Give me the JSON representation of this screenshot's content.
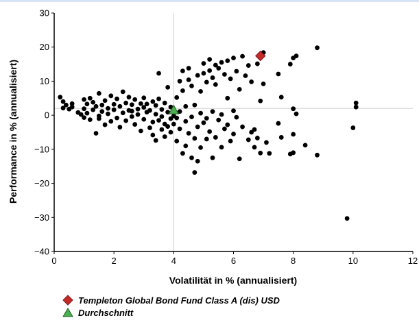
{
  "chart_data": {
    "type": "scatter",
    "xlabel": "Volatilität in % (annualisiert)",
    "ylabel": "Performance in % (annualisiert)",
    "xlim": [
      0,
      12
    ],
    "ylim": [
      -40,
      30
    ],
    "x_ticks": [
      "0",
      "2",
      "4",
      "6",
      "8",
      "10",
      "12"
    ],
    "y_ticks": [
      "30",
      "20",
      "10",
      "0",
      "−10",
      "−20",
      "−30",
      "−40"
    ],
    "grid": false,
    "crosshair": {
      "x": 4.0,
      "y": 2.0
    },
    "legend_position": "bottom",
    "series": [
      {
        "name": "",
        "marker": "circle",
        "color": "#000000",
        "points": [
          [
            0.2,
            5.3
          ],
          [
            0.3,
            4.0
          ],
          [
            0.3,
            2.1
          ],
          [
            0.4,
            3.0
          ],
          [
            0.5,
            1.8
          ],
          [
            0.6,
            3.4
          ],
          [
            0.6,
            2.4
          ],
          [
            0.8,
            0.8
          ],
          [
            0.9,
            0.2
          ],
          [
            1.0,
            4.6
          ],
          [
            1.0,
            1.9
          ],
          [
            1.0,
            -0.7
          ],
          [
            1.1,
            3.3
          ],
          [
            1.1,
            0.6
          ],
          [
            1.2,
            5.0
          ],
          [
            1.2,
            -1.3
          ],
          [
            1.3,
            1.6
          ],
          [
            1.3,
            3.8
          ],
          [
            1.4,
            2.6
          ],
          [
            1.4,
            -5.3
          ],
          [
            1.5,
            6.4
          ],
          [
            1.5,
            -0.2
          ],
          [
            1.6,
            3.0
          ],
          [
            1.6,
            1.1
          ],
          [
            1.7,
            -2.8
          ],
          [
            1.7,
            4.3
          ],
          [
            1.8,
            2.0
          ],
          [
            1.8,
            0.4
          ],
          [
            1.9,
            5.7
          ],
          [
            1.9,
            -1.8
          ],
          [
            2.0,
            3.2
          ],
          [
            2.0,
            1.6
          ],
          [
            2.1,
            -0.8
          ],
          [
            2.1,
            4.8
          ],
          [
            2.2,
            2.6
          ],
          [
            2.2,
            -3.5
          ],
          [
            2.3,
            6.9
          ],
          [
            2.3,
            0.7
          ],
          [
            2.4,
            3.6
          ],
          [
            2.4,
            -1.6
          ],
          [
            2.5,
            5.3
          ],
          [
            2.5,
            1.4
          ],
          [
            2.6,
            -0.4
          ],
          [
            2.6,
            3.1
          ],
          [
            2.7,
            4.6
          ],
          [
            2.7,
            -2.7
          ],
          [
            2.8,
            1.8
          ],
          [
            2.8,
            0.2
          ],
          [
            2.9,
            3.4
          ],
          [
            2.9,
            -4.6
          ],
          [
            3.0,
            2.3
          ],
          [
            3.0,
            5.1
          ],
          [
            3.0,
            -1.2
          ],
          [
            3.1,
            0.9
          ],
          [
            3.1,
            3.3
          ],
          [
            3.2,
            -3.7
          ],
          [
            3.2,
            1.4
          ],
          [
            3.3,
            -2.0
          ],
          [
            3.3,
            4.0
          ],
          [
            3.3,
            -5.8
          ],
          [
            3.4,
            0.3
          ],
          [
            3.4,
            2.9
          ],
          [
            3.4,
            -7.4
          ],
          [
            3.5,
            12.3
          ],
          [
            3.5,
            -1.5
          ],
          [
            3.5,
            4.8
          ],
          [
            3.6,
            -4.2
          ],
          [
            3.6,
            1.7
          ],
          [
            3.6,
            -0.4
          ],
          [
            3.7,
            -2.6
          ],
          [
            3.7,
            3.6
          ],
          [
            3.7,
            -6.3
          ],
          [
            3.8,
            0.9
          ],
          [
            3.8,
            -3.3
          ],
          [
            3.8,
            8.2
          ],
          [
            3.9,
            -1.0
          ],
          [
            3.9,
            2.4
          ],
          [
            3.9,
            -5.0
          ],
          [
            4.0,
            -0.2
          ],
          [
            4.0,
            1.4
          ],
          [
            4.0,
            -2.6
          ],
          [
            4.1,
            5.2
          ],
          [
            4.1,
            -7.6
          ],
          [
            4.1,
            -0.8
          ],
          [
            4.2,
            10.0
          ],
          [
            4.2,
            -4.0
          ],
          [
            4.2,
            1.1
          ],
          [
            4.3,
            7.2
          ],
          [
            4.3,
            13.0
          ],
          [
            4.3,
            -11.2
          ],
          [
            4.4,
            -9.0
          ],
          [
            4.4,
            2.6
          ],
          [
            4.4,
            -1.8
          ],
          [
            4.5,
            13.8
          ],
          [
            4.5,
            -5.3
          ],
          [
            4.5,
            10.4
          ],
          [
            4.6,
            -12.5
          ],
          [
            4.6,
            -0.5
          ],
          [
            4.6,
            8.6
          ],
          [
            4.7,
            -16.8
          ],
          [
            4.7,
            -6.8
          ],
          [
            4.7,
            3.0
          ],
          [
            4.8,
            11.7
          ],
          [
            4.8,
            -3.4
          ],
          [
            4.8,
            -13.5
          ],
          [
            4.9,
            7.0
          ],
          [
            4.9,
            -9.5
          ],
          [
            4.9,
            0.6
          ],
          [
            5.0,
            15.2
          ],
          [
            5.0,
            -2.2
          ],
          [
            5.0,
            12.3
          ],
          [
            5.1,
            -7.0
          ],
          [
            5.1,
            9.7
          ],
          [
            5.1,
            -0.9
          ],
          [
            5.2,
            16.4
          ],
          [
            5.2,
            -4.8
          ],
          [
            5.2,
            13.1
          ],
          [
            5.3,
            -12.5
          ],
          [
            5.3,
            11.0
          ],
          [
            5.3,
            1.1
          ],
          [
            5.4,
            14.7
          ],
          [
            5.4,
            -6.5
          ],
          [
            5.4,
            9.0
          ],
          [
            5.5,
            -1.4
          ],
          [
            5.5,
            13.8
          ],
          [
            5.6,
            -9.4
          ],
          [
            5.6,
            15.5
          ],
          [
            5.6,
            0.2
          ],
          [
            5.7,
            -4.0
          ],
          [
            5.7,
            12.0
          ],
          [
            5.8,
            5.0
          ],
          [
            5.8,
            -2.8
          ],
          [
            5.8,
            16.0
          ],
          [
            5.9,
            -7.6
          ],
          [
            5.9,
            10.7
          ],
          [
            6.0,
            1.3
          ],
          [
            6.0,
            16.8
          ],
          [
            6.0,
            -5.5
          ],
          [
            6.1,
            12.9
          ],
          [
            6.1,
            -0.6
          ],
          [
            6.2,
            -12.8
          ],
          [
            6.2,
            7.6
          ],
          [
            6.3,
            17.3
          ],
          [
            6.3,
            -3.4
          ],
          [
            6.4,
            11.6
          ],
          [
            6.5,
            -7.2
          ],
          [
            6.5,
            14.6
          ],
          [
            6.6,
            -5.0
          ],
          [
            6.6,
            9.8
          ],
          [
            6.7,
            -9.4
          ],
          [
            6.7,
            -4.2
          ],
          [
            6.8,
            15.1
          ],
          [
            6.8,
            -6.7
          ],
          [
            6.9,
            4.2
          ],
          [
            6.9,
            -11.1
          ],
          [
            7.0,
            18.4
          ],
          [
            7.0,
            9.2
          ],
          [
            7.1,
            -8.0
          ],
          [
            7.2,
            -11.2
          ],
          [
            7.5,
            12.1
          ],
          [
            7.5,
            -2.4
          ],
          [
            7.6,
            5.3
          ],
          [
            7.6,
            -6.5
          ],
          [
            7.9,
            -11.4
          ],
          [
            7.9,
            15.0
          ],
          [
            8.0,
            -5.6
          ],
          [
            8.0,
            -11.0
          ],
          [
            8.0,
            1.9
          ],
          [
            8.0,
            16.8
          ],
          [
            8.1,
            17.4
          ],
          [
            8.1,
            0.4
          ],
          [
            8.4,
            -8.8
          ],
          [
            8.8,
            19.8
          ],
          [
            8.8,
            -11.7
          ],
          [
            9.8,
            -30.3
          ],
          [
            10.0,
            -3.7
          ],
          [
            10.1,
            3.6
          ],
          [
            10.1,
            2.4
          ],
          [
            1.5,
            -1.0
          ],
          [
            2.6,
            1.2
          ]
        ]
      },
      {
        "name": "Templeton Global Bond Fund Class A (dis) USD",
        "marker": "diamond",
        "color": "#c62828",
        "points": [
          [
            6.9,
            17.4
          ]
        ]
      },
      {
        "name": "Durchschnitt",
        "marker": "triangle",
        "color": "#4caf50",
        "points": [
          [
            4.0,
            1.5
          ]
        ]
      }
    ]
  }
}
